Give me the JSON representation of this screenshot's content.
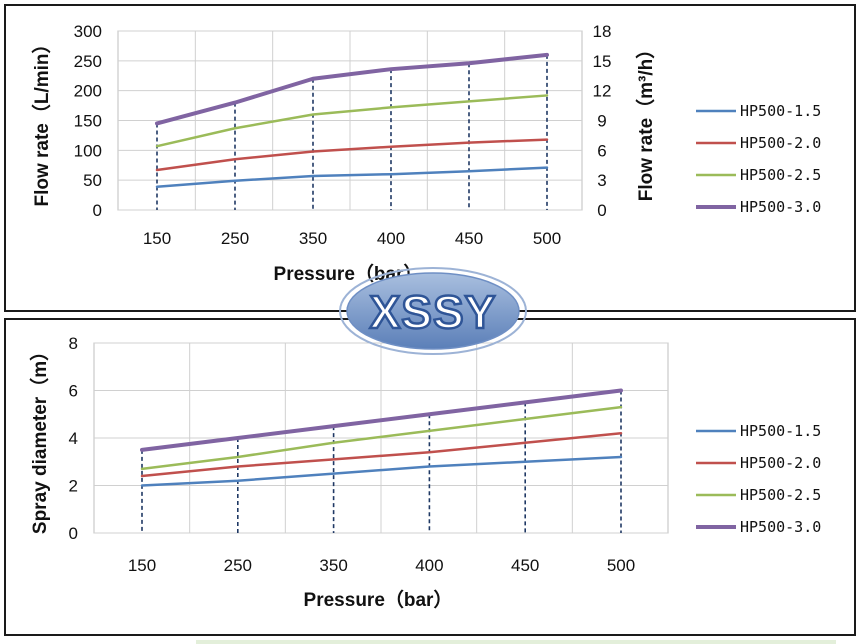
{
  "chart_data": [
    {
      "type": "line",
      "title": "",
      "xlabel": "Pressure（bar）",
      "ylabel": "Flow rate（L/min）",
      "y2label": "Flow rate（m³/h）",
      "categories": [
        "150",
        "250",
        "350",
        "400",
        "450",
        "500"
      ],
      "ylim": [
        0,
        300
      ],
      "yticks": [
        "0",
        "50",
        "100",
        "150",
        "200",
        "250",
        "300"
      ],
      "y2lim": [
        0,
        18
      ],
      "y2ticks": [
        "0",
        "3",
        "6",
        "9",
        "12",
        "15",
        "18"
      ],
      "grid": true,
      "legend": "right",
      "series": [
        {
          "name": "HP500-1.5",
          "color": "#4f81bd",
          "values": [
            39,
            49,
            57,
            60,
            65,
            71
          ]
        },
        {
          "name": "HP500-2.0",
          "color": "#c0504d",
          "values": [
            67,
            85,
            98,
            106,
            113,
            118
          ]
        },
        {
          "name": "HP500-2.5",
          "color": "#9bbb59",
          "values": [
            107,
            137,
            160,
            172,
            182,
            192
          ]
        },
        {
          "name": "HP500-3.0",
          "color": "#8064a2",
          "values": [
            145,
            180,
            220,
            236,
            246,
            260
          ]
        }
      ]
    },
    {
      "type": "line",
      "title": "",
      "xlabel": "Pressure（bar）",
      "ylabel": "Spray diameter（m）",
      "categories": [
        "150",
        "250",
        "350",
        "400",
        "450",
        "500"
      ],
      "ylim": [
        0,
        8
      ],
      "yticks": [
        "0",
        "2",
        "4",
        "6",
        "8"
      ],
      "grid": true,
      "legend": "right",
      "series": [
        {
          "name": "HP500-1.5",
          "color": "#4f81bd",
          "values": [
            2.0,
            2.2,
            2.5,
            2.8,
            3.0,
            3.2
          ]
        },
        {
          "name": "HP500-2.0",
          "color": "#c0504d",
          "values": [
            2.4,
            2.8,
            3.1,
            3.4,
            3.8,
            4.2
          ]
        },
        {
          "name": "HP500-2.5",
          "color": "#9bbb59",
          "values": [
            2.7,
            3.2,
            3.8,
            4.3,
            4.8,
            5.3
          ]
        },
        {
          "name": "HP500-3.0",
          "color": "#8064a2",
          "values": [
            3.5,
            4.0,
            4.5,
            5.0,
            5.5,
            6.0
          ]
        }
      ]
    }
  ],
  "logo": {
    "text": "XSSY",
    "color": "#2f5597",
    "fill": "#7f9fcc"
  }
}
